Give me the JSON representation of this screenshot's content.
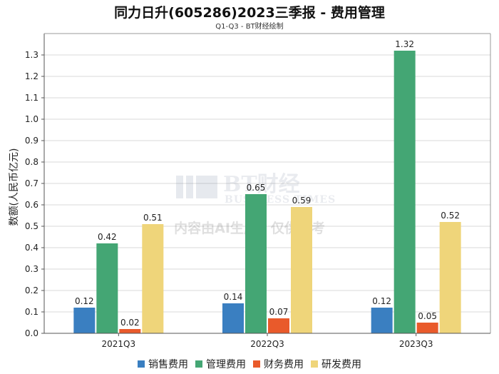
{
  "chart_data": {
    "type": "bar",
    "title": "同力日升(605286)2023三季报 - 费用管理",
    "subtitle": "Q1-Q3 - BT财经绘制",
    "ylabel": "数额(人民币亿元)",
    "xlabel": "",
    "ylim": [
      0,
      1.4
    ],
    "yticks": [
      "0.0",
      "0.1",
      "0.2",
      "0.3",
      "0.4",
      "0.5",
      "0.6",
      "0.7",
      "0.8",
      "0.9",
      "1.0",
      "1.1",
      "1.2",
      "1.3"
    ],
    "categories": [
      "2021Q3",
      "2022Q3",
      "2023Q3"
    ],
    "series": [
      {
        "name": "销售费用",
        "color": "#3a7fc1",
        "values": [
          0.12,
          0.14,
          0.12
        ],
        "labels": [
          "0.12",
          "0.14",
          "0.12"
        ]
      },
      {
        "name": "管理费用",
        "color": "#44a674",
        "values": [
          0.42,
          0.65,
          1.32
        ],
        "labels": [
          "0.42",
          "0.65",
          "1.32"
        ]
      },
      {
        "name": "财务费用",
        "color": "#e95a2b",
        "values": [
          0.02,
          0.07,
          0.05
        ],
        "labels": [
          "0.02",
          "0.07",
          "0.05"
        ]
      },
      {
        "name": "研发费用",
        "color": "#efd57a",
        "values": [
          0.51,
          0.59,
          0.52
        ],
        "labels": [
          "0.51",
          "0.59",
          "0.52"
        ]
      }
    ],
    "grid": true,
    "legend_position": "bottom"
  },
  "watermark": {
    "logo_text": "BT财经",
    "logo_subtext": "BUSINESS TIMES",
    "notice": "内容由AI生成，仅供参考"
  }
}
